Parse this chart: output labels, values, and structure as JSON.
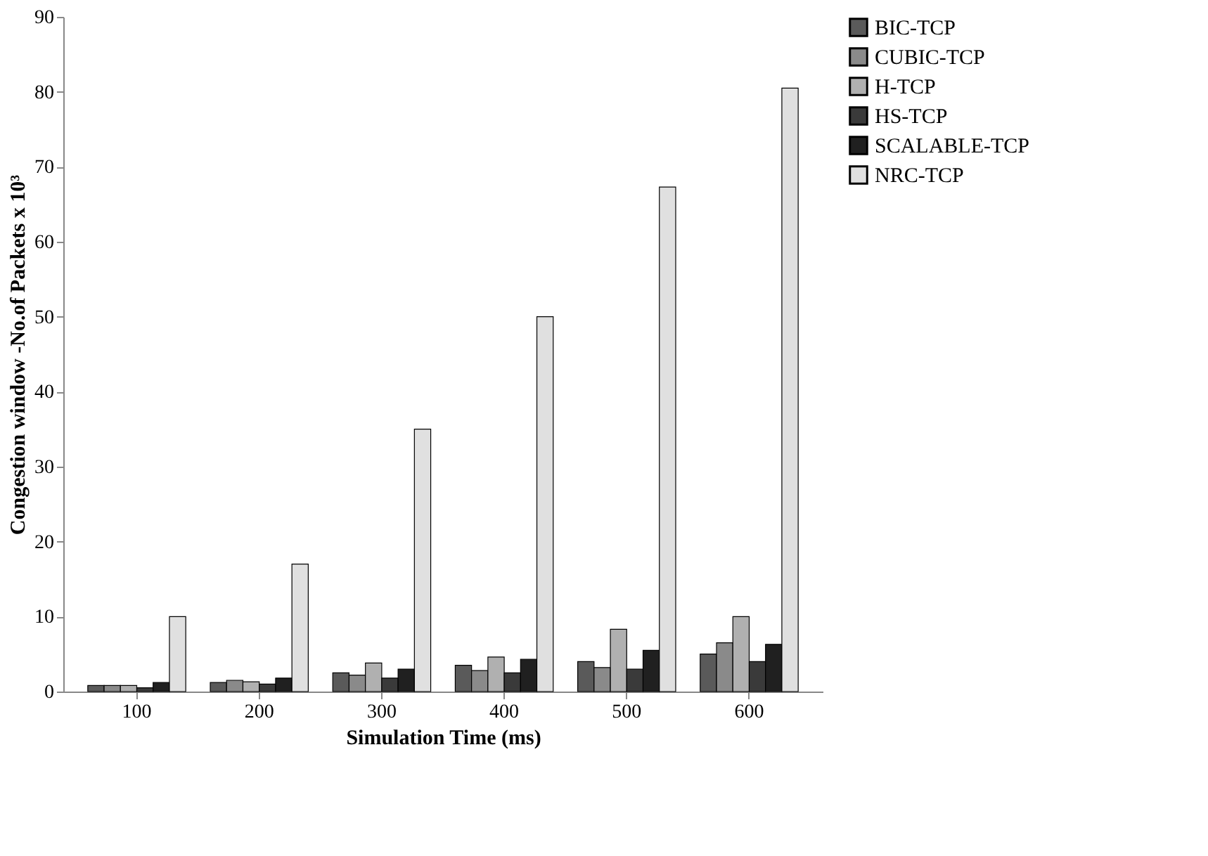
{
  "chart_data": {
    "type": "bar",
    "xlabel": "Simulation Time (ms)",
    "ylabel": "Congestion window -No.of Packets x 10³",
    "categories": [
      "100",
      "200",
      "300",
      "400",
      "500",
      "600"
    ],
    "series": [
      {
        "name": "BIC-TCP",
        "color": "#5a5a5a",
        "values": [
          0.8,
          1.2,
          2.5,
          3.5,
          4.0,
          5.0
        ]
      },
      {
        "name": "CUBIC-TCP",
        "color": "#8a8a8a",
        "values": [
          0.8,
          1.5,
          2.2,
          2.8,
          3.2,
          6.5
        ]
      },
      {
        "name": "H-TCP",
        "color": "#b0b0b0",
        "values": [
          0.8,
          1.3,
          3.8,
          4.6,
          8.3,
          10
        ]
      },
      {
        "name": "HS-TCP",
        "color": "#3a3a3a",
        "values": [
          0.5,
          1.0,
          1.8,
          2.5,
          3.0,
          4.0
        ]
      },
      {
        "name": "SCALABLE-TCP",
        "color": "#202020",
        "values": [
          1.2,
          1.8,
          3.0,
          4.3,
          5.5,
          6.3
        ]
      },
      {
        "name": "NRC-TCP",
        "color": "#e0e0e0",
        "values": [
          10,
          17,
          35,
          50,
          67.3,
          80.5
        ]
      }
    ],
    "ylim": [
      0,
      90
    ],
    "yticks": [
      0,
      10,
      20,
      30,
      40,
      50,
      60,
      70,
      80,
      90
    ],
    "grid": false,
    "legend": "right"
  }
}
